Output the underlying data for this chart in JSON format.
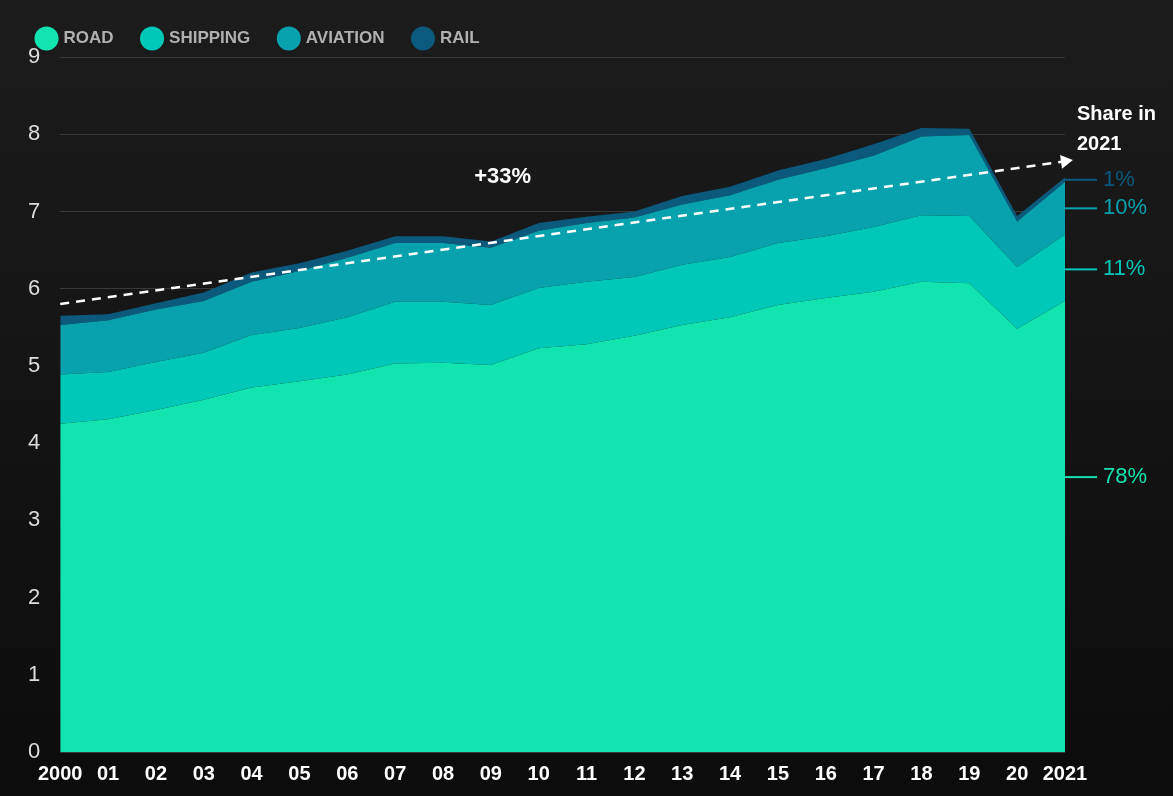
{
  "chart_data": {
    "type": "area",
    "stacked": true,
    "categories": [
      "2000",
      "01",
      "02",
      "03",
      "04",
      "05",
      "06",
      "07",
      "08",
      "09",
      "10",
      "11",
      "12",
      "13",
      "14",
      "15",
      "16",
      "17",
      "18",
      "19",
      "20",
      "2021"
    ],
    "series": [
      {
        "name": "ROAD",
        "color": "#12e4b0",
        "values": [
          4.25,
          4.31,
          4.43,
          4.56,
          4.72,
          4.8,
          4.89,
          5.03,
          5.04,
          5.01,
          5.23,
          5.28,
          5.39,
          5.53,
          5.63,
          5.79,
          5.88,
          5.96,
          6.09,
          6.07,
          5.48,
          5.84
        ]
      },
      {
        "name": "SHIPPING",
        "color": "#00c8b8",
        "values": [
          0.64,
          0.61,
          0.62,
          0.61,
          0.68,
          0.69,
          0.74,
          0.8,
          0.79,
          0.78,
          0.78,
          0.81,
          0.76,
          0.78,
          0.78,
          0.8,
          0.8,
          0.84,
          0.86,
          0.87,
          0.8,
          0.86
        ]
      },
      {
        "name": "AVIATION",
        "color": "#07a2ae",
        "values": [
          0.64,
          0.67,
          0.68,
          0.67,
          0.69,
          0.74,
          0.77,
          0.76,
          0.76,
          0.74,
          0.74,
          0.76,
          0.77,
          0.78,
          0.8,
          0.82,
          0.88,
          0.92,
          1.02,
          1.05,
          0.59,
          0.68
        ]
      },
      {
        "name": "RAIL",
        "color": "#0b5a7e",
        "values": [
          0.12,
          0.08,
          0.08,
          0.11,
          0.12,
          0.1,
          0.09,
          0.09,
          0.09,
          0.08,
          0.1,
          0.08,
          0.08,
          0.11,
          0.11,
          0.12,
          0.12,
          0.15,
          0.11,
          0.08,
          0.07,
          0.06
        ]
      },
      {
        "type": "line",
        "color": "#ffffff",
        "line_style": "dashed",
        "values": [
          5.8,
          null,
          null,
          null,
          null,
          null,
          null,
          null,
          null,
          null,
          null,
          null,
          null,
          null,
          null,
          null,
          null,
          null,
          null,
          null,
          null,
          7.65
        ]
      }
    ],
    "ylim": [
      0,
      9
    ],
    "yticks": [
      0,
      1,
      2,
      3,
      4,
      5,
      6,
      7,
      8,
      9
    ],
    "grid": "y",
    "legend": "top left",
    "annotations": [
      "Share in 2021",
      "+33%",
      {
        "text": "1%",
        "x": "2021",
        "y": 7.41
      },
      {
        "text": "10%",
        "x": "2021",
        "y": 7.04
      },
      {
        "text": "11%",
        "x": "2021",
        "y": 6.25
      },
      {
        "text": "78%",
        "x": "2021",
        "y": 3.56
      }
    ]
  }
}
